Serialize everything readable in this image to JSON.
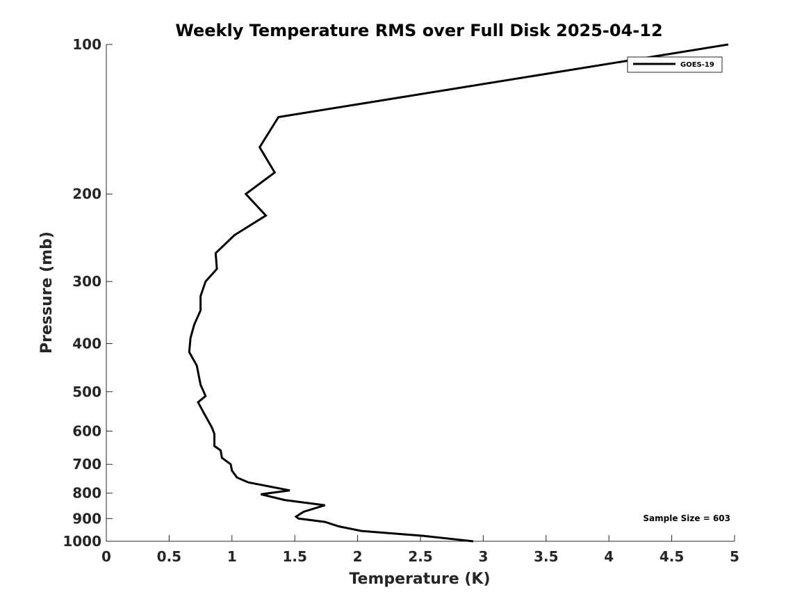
{
  "chart_data": {
    "type": "line",
    "title": "Weekly Temperature RMS over Full Disk 2025-04-12",
    "xlabel": "Temperature (K)",
    "ylabel": "Pressure (mb)",
    "xlim": [
      0,
      5
    ],
    "ylim": [
      100,
      1000
    ],
    "y_scale": "log",
    "y_reversed": true,
    "x_ticks": [
      0,
      0.5,
      1,
      1.5,
      2,
      2.5,
      3,
      3.5,
      4,
      4.5,
      5
    ],
    "x_tick_labels": [
      "0",
      "0.5",
      "1",
      "1.5",
      "2",
      "2.5",
      "3",
      "3.5",
      "4",
      "4.5",
      "5"
    ],
    "y_ticks": [
      100,
      200,
      300,
      400,
      500,
      600,
      700,
      800,
      900,
      1000
    ],
    "y_tick_labels": [
      "100",
      "200",
      "300",
      "400",
      "500",
      "600",
      "700",
      "800",
      "900",
      "1000"
    ],
    "grid": false,
    "legend_position": "top-right",
    "series": [
      {
        "name": "GOES-19",
        "color": "#000000",
        "points": [
          [
            4.95,
            100
          ],
          [
            1.37,
            140
          ],
          [
            1.22,
            161
          ],
          [
            1.34,
            181
          ],
          [
            1.11,
            200
          ],
          [
            1.27,
            221
          ],
          [
            1.02,
            242
          ],
          [
            0.87,
            263
          ],
          [
            0.88,
            283
          ],
          [
            0.79,
            300
          ],
          [
            0.75,
            321
          ],
          [
            0.75,
            343
          ],
          [
            0.7,
            366
          ],
          [
            0.67,
            390
          ],
          [
            0.66,
            416
          ],
          [
            0.72,
            443
          ],
          [
            0.75,
            484
          ],
          [
            0.79,
            510
          ],
          [
            0.73,
            525
          ],
          [
            0.78,
            554
          ],
          [
            0.84,
            590
          ],
          [
            0.86,
            608
          ],
          [
            0.86,
            643
          ],
          [
            0.91,
            656
          ],
          [
            0.92,
            679
          ],
          [
            0.99,
            700
          ],
          [
            1.0,
            721
          ],
          [
            1.04,
            744
          ],
          [
            1.13,
            761
          ],
          [
            1.46,
            790
          ],
          [
            1.23,
            804
          ],
          [
            1.42,
            826
          ],
          [
            1.74,
            846
          ],
          [
            1.57,
            872
          ],
          [
            1.51,
            892
          ],
          [
            1.53,
            900
          ],
          [
            1.74,
            914
          ],
          [
            1.85,
            933
          ],
          [
            2.03,
            953
          ],
          [
            2.52,
            975
          ],
          [
            2.92,
            1000
          ]
        ]
      }
    ],
    "annotations": [
      "Sample Size = 603"
    ]
  }
}
